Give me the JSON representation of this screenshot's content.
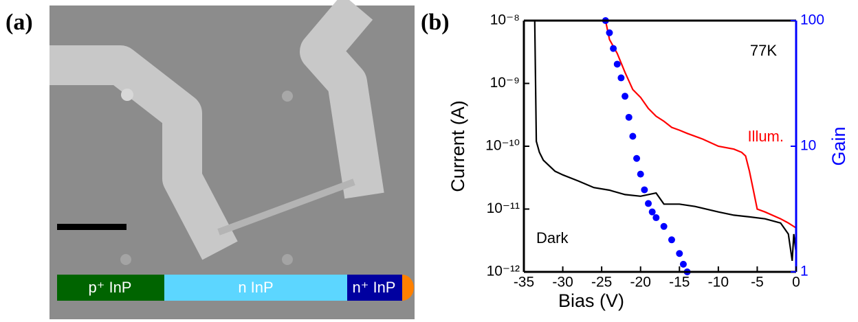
{
  "panel_a": {
    "label": "(a)",
    "segments": [
      "p⁺ InP",
      "n InP",
      "n⁺ InP"
    ]
  },
  "chart_data": {
    "type": "line",
    "label": "(b)",
    "xlabel": "Bias (V)",
    "ylabel": "Current (A)",
    "y2label": "Gain",
    "annotation": "77K",
    "log_y": true,
    "log_y2": true,
    "xlim": [
      -35,
      0
    ],
    "xticks": [
      -35,
      -30,
      -25,
      -20,
      -15,
      -10,
      -5,
      0
    ],
    "ylim": [
      1e-12,
      1e-08
    ],
    "yticks": [
      {
        "value": 1e-12,
        "label": "10⁻¹²"
      },
      {
        "value": 1e-11,
        "label": "10⁻¹¹"
      },
      {
        "value": 1e-10,
        "label": "10⁻¹⁰"
      },
      {
        "value": 1e-09,
        "label": "10⁻⁹"
      },
      {
        "value": 1e-08,
        "label": "10⁻⁸"
      }
    ],
    "y2lim": [
      1,
      100
    ],
    "y2ticks": [
      1,
      10,
      100
    ],
    "series": [
      {
        "name": "Dark",
        "color": "#000000",
        "x": [
          -33.6,
          -33.4,
          -33,
          -32.5,
          -31,
          -30,
          -28,
          -26,
          -24,
          -22,
          -20,
          -18,
          -17,
          -15,
          -13,
          -10,
          -8,
          -6,
          -4,
          -2,
          -1,
          -0.5,
          -0.3,
          0
        ],
        "values": [
          1e-08,
          1.2e-10,
          8e-11,
          6e-11,
          4e-11,
          3.5e-11,
          2.8e-11,
          2.2e-11,
          2e-11,
          1.7e-11,
          1.6e-11,
          1.8e-11,
          1.2e-11,
          1.2e-11,
          1.1e-11,
          9e-12,
          8e-12,
          7.5e-12,
          7e-12,
          6e-12,
          4e-12,
          1.5e-12,
          4e-12,
          2e-12
        ]
      },
      {
        "name": "Illum.",
        "color": "#ff0000",
        "x": [
          -24.5,
          -24,
          -23,
          -22,
          -21,
          -20,
          -19,
          -18,
          -17,
          -16,
          -15,
          -14,
          -12,
          -10,
          -8,
          -7,
          -6.5,
          -6,
          -5.5,
          -5,
          -4,
          -2,
          -1,
          0
        ],
        "values": [
          1e-08,
          5e-09,
          3e-09,
          1.5e-09,
          8e-10,
          6e-10,
          4e-10,
          3e-10,
          2.5e-10,
          2e-10,
          1.8e-10,
          1.6e-10,
          1.3e-10,
          1e-10,
          9e-11,
          8e-11,
          7e-11,
          4e-11,
          2e-11,
          1e-11,
          9e-12,
          7e-12,
          6e-12,
          5e-12
        ]
      },
      {
        "color": "#0000ff",
        "axis": "y2",
        "marker": "dot",
        "x": [
          -24.5,
          -24,
          -23.5,
          -23,
          -22.5,
          -22,
          -21.5,
          -21,
          -20.5,
          -20,
          -19.5,
          -19,
          -18.5,
          -18,
          -17,
          -16,
          -15,
          -14.5,
          -14
        ],
        "values": [
          100,
          80,
          60,
          45,
          35,
          25,
          17,
          12,
          8,
          6,
          4.5,
          3.5,
          3,
          2.7,
          2.3,
          1.8,
          1.4,
          1.15,
          1
        ]
      }
    ]
  }
}
